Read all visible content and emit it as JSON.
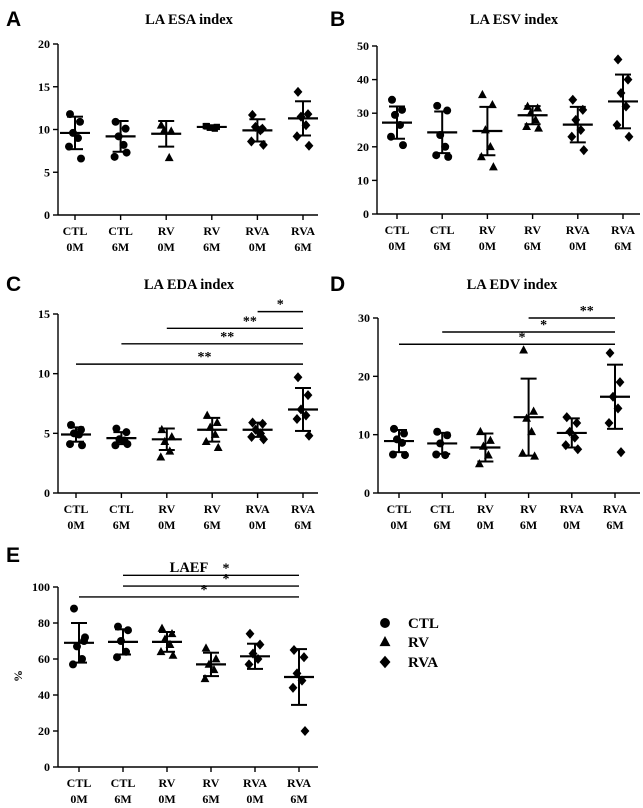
{
  "chart_data": [
    {
      "panel": "A",
      "type": "scatter",
      "title": "LA ESA index",
      "ylabel": "",
      "ylim": [
        0,
        20
      ],
      "yticks": [
        0,
        5,
        10,
        15,
        20
      ],
      "categories": [
        [
          "CTL",
          "0M"
        ],
        [
          "CTL",
          "6M"
        ],
        [
          "RV",
          "0M"
        ],
        [
          "RV",
          "6M"
        ],
        [
          "RVA",
          "0M"
        ],
        [
          "RVA",
          "6M"
        ]
      ],
      "groups": [
        {
          "marker": "circle",
          "points": [
            11.8,
            10.9,
            9.6,
            9.0,
            8.0,
            6.6
          ],
          "mean": 9.6,
          "sd": 1.9
        },
        {
          "marker": "circle",
          "points": [
            10.9,
            10.1,
            9.2,
            8.2,
            6.8,
            7.3
          ],
          "mean": 9.2,
          "sd": 1.8
        },
        {
          "marker": "triangle",
          "points": [
            10.5,
            9.8,
            9.9,
            6.7
          ],
          "mean": 9.5,
          "sd": 1.5
        },
        {
          "marker": "square",
          "points": [
            10.4,
            10.3,
            10.2,
            10.1,
            10.4
          ],
          "mean": 10.3,
          "sd": 0.2
        },
        {
          "marker": "diamond",
          "points": [
            11.7,
            10.1,
            10.3,
            9.9,
            8.6,
            8.2
          ],
          "mean": 9.9,
          "sd": 1.3
        },
        {
          "marker": "diamond",
          "points": [
            14.4,
            11.8,
            11.5,
            10.5,
            9.2,
            8.1
          ],
          "mean": 11.3,
          "sd": 2.0
        }
      ],
      "significance": []
    },
    {
      "panel": "B",
      "type": "scatter",
      "title": "LA ESV index",
      "ylabel": "",
      "ylim": [
        0,
        50
      ],
      "yticks": [
        0,
        10,
        20,
        30,
        40,
        50
      ],
      "categories": [
        [
          "CTL",
          "0M"
        ],
        [
          "CTL",
          "6M"
        ],
        [
          "RV",
          "0M"
        ],
        [
          "RV",
          "6M"
        ],
        [
          "RVA",
          "0M"
        ],
        [
          "RVA",
          "6M"
        ]
      ],
      "groups": [
        {
          "marker": "circle",
          "points": [
            34.0,
            31.0,
            29.5,
            26.5,
            23.0,
            20.5
          ],
          "mean": 27.2,
          "sd": 4.8
        },
        {
          "marker": "circle",
          "points": [
            32.2,
            30.8,
            23.5,
            20.0,
            17.5,
            17.0
          ],
          "mean": 24.3,
          "sd": 6.2
        },
        {
          "marker": "triangle",
          "points": [
            35.5,
            32.5,
            25.0,
            20.0,
            17.0,
            14.0
          ],
          "mean": 24.7,
          "sd": 7.2
        },
        {
          "marker": "triangle",
          "points": [
            32.0,
            31.5,
            30.0,
            28.0,
            26.0,
            25.5
          ],
          "mean": 29.4,
          "sd": 2.7
        },
        {
          "marker": "diamond",
          "points": [
            34.0,
            31.0,
            28.0,
            25.0,
            23.0,
            19.0
          ],
          "mean": 26.6,
          "sd": 5.3
        },
        {
          "marker": "diamond",
          "points": [
            46.0,
            40.0,
            36.0,
            32.0,
            26.5,
            23.0
          ],
          "mean": 33.5,
          "sd": 8.0
        }
      ],
      "significance": []
    },
    {
      "panel": "C",
      "type": "scatter",
      "title": "LA EDA index",
      "ylabel": "",
      "ylim": [
        0,
        15
      ],
      "yticks": [
        0,
        5,
        10,
        15
      ],
      "categories": [
        [
          "CTL",
          "0M"
        ],
        [
          "CTL",
          "6M"
        ],
        [
          "RV",
          "0M"
        ],
        [
          "RV",
          "6M"
        ],
        [
          "RVA",
          "0M"
        ],
        [
          "RVA",
          "6M"
        ]
      ],
      "groups": [
        {
          "marker": "circle",
          "points": [
            5.7,
            5.3,
            5.0,
            4.9,
            4.1,
            4.0
          ],
          "mean": 4.9,
          "sd": 0.6
        },
        {
          "marker": "circle",
          "points": [
            5.4,
            5.1,
            4.5,
            4.4,
            4.0,
            4.1
          ],
          "mean": 4.6,
          "sd": 0.5
        },
        {
          "marker": "triangle",
          "points": [
            5.3,
            4.7,
            4.3,
            3.5,
            3.0
          ],
          "mean": 4.5,
          "sd": 0.9
        },
        {
          "marker": "triangle",
          "points": [
            6.5,
            5.9,
            5.5,
            4.9,
            4.3,
            3.8
          ],
          "mean": 5.3,
          "sd": 1.0
        },
        {
          "marker": "diamond",
          "points": [
            5.9,
            5.8,
            5.3,
            5.0,
            4.7,
            4.5
          ],
          "mean": 5.3,
          "sd": 0.6
        },
        {
          "marker": "diamond",
          "points": [
            9.7,
            8.2,
            7.0,
            6.5,
            6.2,
            4.8
          ],
          "mean": 7.0,
          "sd": 1.8
        }
      ],
      "significance": [
        {
          "from": 4,
          "to": 5,
          "label": "*",
          "y": 15.2
        },
        {
          "from": 2,
          "to": 5,
          "label": "**",
          "y": 13.8
        },
        {
          "from": 1,
          "to": 5,
          "label": "**",
          "y": 12.5
        },
        {
          "from": 0,
          "to": 5,
          "label": "**",
          "y": 10.8
        }
      ]
    },
    {
      "panel": "D",
      "type": "scatter",
      "title": "LA EDV index",
      "ylabel": "",
      "ylim": [
        0,
        30
      ],
      "yticks": [
        0,
        10,
        20,
        30
      ],
      "categories": [
        [
          "CTL",
          "0M"
        ],
        [
          "CTL",
          "6M"
        ],
        [
          "RV",
          "0M"
        ],
        [
          "RV",
          "6M"
        ],
        [
          "RVA",
          "0M"
        ],
        [
          "RVA",
          "6M"
        ]
      ],
      "groups": [
        {
          "marker": "circle",
          "points": [
            11.0,
            10.2,
            9.2,
            8.6,
            6.6,
            6.5
          ],
          "mean": 8.9,
          "sd": 1.9
        },
        {
          "marker": "circle",
          "points": [
            10.5,
            9.9,
            8.5,
            6.5,
            6.6
          ],
          "mean": 8.5,
          "sd": 1.8
        },
        {
          "marker": "triangle",
          "points": [
            10.5,
            9.0,
            8.0,
            6.5,
            5.0
          ],
          "mean": 7.8,
          "sd": 2.4
        },
        {
          "marker": "triangle",
          "points": [
            24.5,
            14.0,
            12.8,
            10.5,
            6.8,
            6.3
          ],
          "mean": 13.0,
          "sd": 6.6
        },
        {
          "marker": "diamond",
          "points": [
            13.0,
            12.0,
            10.5,
            9.5,
            8.2,
            7.5
          ],
          "mean": 10.3,
          "sd": 2.5
        },
        {
          "marker": "diamond",
          "points": [
            24.0,
            19.0,
            16.5,
            14.5,
            12.0,
            7.0
          ],
          "mean": 16.5,
          "sd": 5.5
        }
      ],
      "significance": [
        {
          "from": 3,
          "to": 5,
          "label": "**",
          "y": 30.0
        },
        {
          "from": 1,
          "to": 5,
          "label": "*",
          "y": 27.6
        },
        {
          "from": 0,
          "to": 5,
          "label": "*",
          "y": 25.5
        }
      ]
    },
    {
      "panel": "E",
      "type": "scatter",
      "title": "LAEF",
      "ylabel": "%",
      "ylim": [
        0,
        100
      ],
      "yticks": [
        0,
        20,
        40,
        60,
        80,
        100
      ],
      "categories": [
        [
          "CTL",
          "0M"
        ],
        [
          "CTL",
          "6M"
        ],
        [
          "RV",
          "0M"
        ],
        [
          "RV",
          "6M"
        ],
        [
          "RVA",
          "0M"
        ],
        [
          "RVA",
          "6M"
        ]
      ],
      "groups": [
        {
          "marker": "circle",
          "points": [
            88.0,
            70.0,
            67.0,
            60.0,
            57.0,
            72.0
          ],
          "mean": 69.0,
          "sd": 11.0
        },
        {
          "marker": "circle",
          "points": [
            78.0,
            76.0,
            70.0,
            64.0,
            61.0
          ],
          "mean": 69.5,
          "sd": 7.0
        },
        {
          "marker": "triangle",
          "points": [
            77.0,
            74.0,
            71.0,
            68.0,
            64.0,
            62.0
          ],
          "mean": 69.5,
          "sd": 5.5
        },
        {
          "marker": "triangle",
          "points": [
            66.0,
            60.0,
            57.0,
            54.0,
            49.0
          ],
          "mean": 57.0,
          "sd": 6.5
        },
        {
          "marker": "diamond",
          "points": [
            74.0,
            68.0,
            63.0,
            60.0,
            57.0
          ],
          "mean": 61.5,
          "sd": 7.0
        },
        {
          "marker": "diamond",
          "points": [
            65.0,
            61.0,
            52.0,
            48.0,
            44.0,
            20.0
          ],
          "mean": 50.0,
          "sd": 15.5
        }
      ],
      "significance": [
        {
          "from": 1,
          "to": 5,
          "label": "*",
          "y": 106.5
        },
        {
          "from": 1,
          "to": 5,
          "label": "*",
          "y": 100.5
        },
        {
          "from": 0,
          "to": 5,
          "label": "*",
          "y": 94.5
        }
      ]
    }
  ],
  "legend": {
    "entries": [
      {
        "marker": "circle",
        "label": "CTL"
      },
      {
        "marker": "triangle",
        "label": "RV"
      },
      {
        "marker": "diamond",
        "label": "RVA"
      }
    ]
  }
}
